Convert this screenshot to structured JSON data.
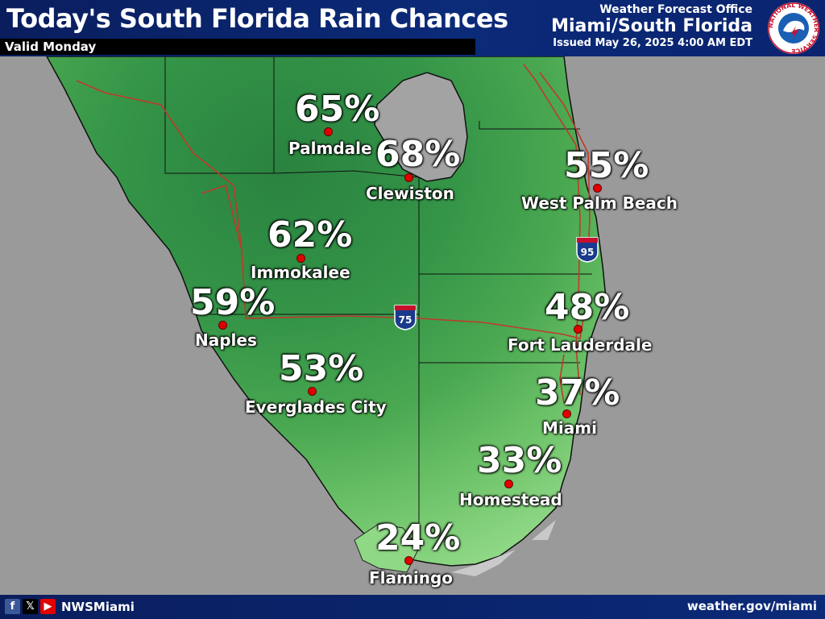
{
  "header": {
    "title": "Today's South Florida Rain Chances",
    "valid": "Valid Monday",
    "office_line1": "Weather Forecast Office",
    "office_line2": "Miami/South Florida",
    "issued": "Issued May 26, 2025 4:00 AM EDT",
    "logo_text": "NATIONAL WEATHER SERVICE"
  },
  "cities": [
    {
      "name": "Palmdale",
      "percent": "65%"
    },
    {
      "name": "Clewiston",
      "percent": "68%"
    },
    {
      "name": "West Palm Beach",
      "percent": "55%"
    },
    {
      "name": "Immokalee",
      "percent": "62%"
    },
    {
      "name": "Naples",
      "percent": "59%"
    },
    {
      "name": "Fort Lauderdale",
      "percent": "48%"
    },
    {
      "name": "Everglades City",
      "percent": "53%"
    },
    {
      "name": "Miami",
      "percent": "37%"
    },
    {
      "name": "Homestead",
      "percent": "33%"
    },
    {
      "name": "Flamingo",
      "percent": "24%"
    }
  ],
  "highways": {
    "i75": "75",
    "i95": "95"
  },
  "footer": {
    "facebook_icon": "f",
    "x_icon": "𝕏",
    "youtube_icon": "▶",
    "handle": "NWSMiami",
    "site": "weather.gov/miami"
  },
  "colors": {
    "header": "#0b2a78",
    "land_dark": "#2f8a46",
    "land_light": "#7fcf7a",
    "water": "#9a9a9a",
    "roads": "#c0392b"
  }
}
